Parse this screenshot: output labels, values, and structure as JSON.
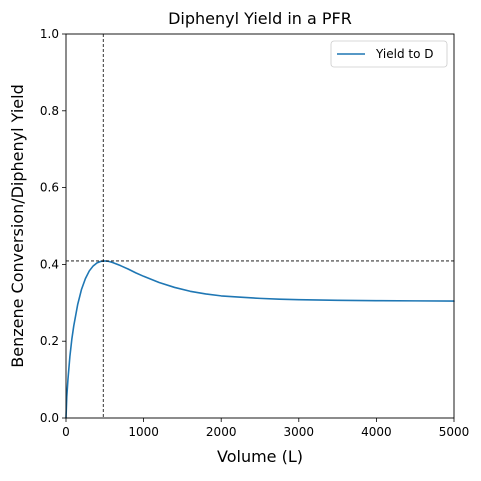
{
  "chart_data": {
    "type": "line",
    "title": "Diphenyl Yield in a PFR",
    "xlabel": "Volume (L)",
    "ylabel": "Benzene Conversion/Diphenyl Yield",
    "xlim": [
      0,
      5000
    ],
    "ylim": [
      0,
      1.0
    ],
    "xticks": [
      0,
      1000,
      2000,
      3000,
      4000,
      5000
    ],
    "xtick_labels": [
      "0",
      "1000",
      "2000",
      "3000",
      "4000",
      "5000"
    ],
    "yticks": [
      0.0,
      0.2,
      0.4,
      0.6,
      0.8,
      1.0
    ],
    "ytick_labels": [
      "0.0",
      "0.2",
      "0.4",
      "0.6",
      "0.8",
      "1.0"
    ],
    "grid": false,
    "legend_position": "top-right",
    "series": [
      {
        "name": "Yield to D",
        "color": "#1f77b4",
        "x": [
          0,
          10,
          25,
          50,
          75,
          100,
          150,
          200,
          250,
          300,
          350,
          400,
          450,
          500,
          550,
          600,
          700,
          800,
          900,
          1000,
          1200,
          1400,
          1600,
          1800,
          2000,
          2250,
          2500,
          2750,
          3000,
          3500,
          4000,
          4500,
          5000
        ],
        "y": [
          0.0,
          0.055,
          0.1,
          0.16,
          0.205,
          0.24,
          0.295,
          0.335,
          0.363,
          0.383,
          0.396,
          0.404,
          0.408,
          0.409,
          0.408,
          0.405,
          0.397,
          0.388,
          0.378,
          0.369,
          0.353,
          0.34,
          0.33,
          0.323,
          0.318,
          0.3145,
          0.3115,
          0.3095,
          0.308,
          0.3065,
          0.3055,
          0.305,
          0.3045
        ]
      }
    ],
    "reference_lines": [
      {
        "orientation": "vertical",
        "x": 480,
        "style": "dashed",
        "color": "#000000"
      },
      {
        "orientation": "horizontal",
        "y": 0.409,
        "style": "dashed",
        "color": "#000000"
      }
    ]
  }
}
